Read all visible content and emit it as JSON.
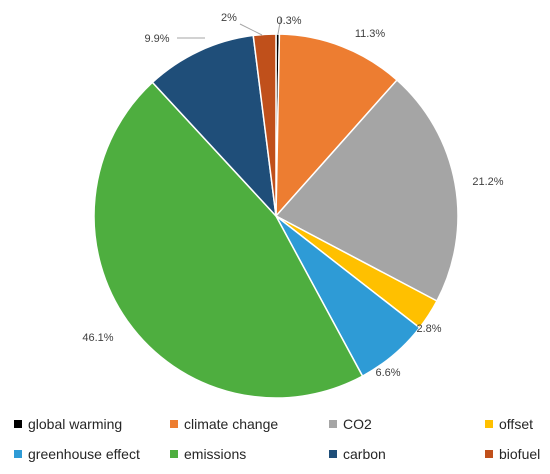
{
  "chart_data": {
    "type": "pie",
    "title": "",
    "legend_position": "bottom",
    "categories": [
      "global warming",
      "climate change",
      "CO2",
      "offset",
      "greenhouse effect",
      "emissions",
      "carbon",
      "biofuel"
    ],
    "values": [
      0.3,
      11.3,
      21.2,
      2.8,
      6.6,
      46.1,
      9.9,
      2
    ],
    "labels": [
      "0.3%",
      "11.3%",
      "21.2%",
      "2.8%",
      "6.6%",
      "46.1%",
      "9.9%",
      "2%"
    ],
    "colors": [
      "#000000",
      "#ED7D31",
      "#A5A5A5",
      "#FFC000",
      "#2E9BD6",
      "#4EAE3F",
      "#1F4E79",
      "#C0501B"
    ]
  }
}
